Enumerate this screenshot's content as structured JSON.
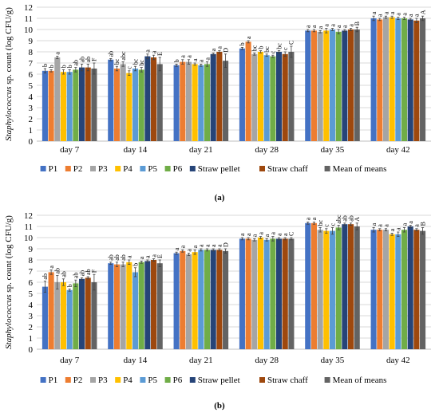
{
  "figure": {
    "panel_a_caption": "(a)",
    "panel_b_caption": "(b)",
    "ylabel_italic": "Staphylococcus",
    "ylabel_rest": " sp. count (log CFU/g)"
  },
  "colors": {
    "P1": "#4472C4",
    "P2": "#ED7D31",
    "P3": "#A5A5A5",
    "P4": "#FFC000",
    "P5": "#5B9BD5",
    "P6": "#70AD47",
    "Straw pellet": "#264478",
    "Straw chaff": "#9E480E",
    "Mean of means": "#636363"
  },
  "chart_data": [
    {
      "type": "bar",
      "panel": "(a)",
      "ylabel": "Staphylococcus sp. count (log CFU/g)",
      "ylim": [
        0,
        12
      ],
      "yticks": [
        0,
        1,
        2,
        3,
        4,
        5,
        6,
        7,
        8,
        9,
        10,
        11,
        12
      ],
      "grid": true,
      "legend_position": "bottom",
      "categories": [
        "day 7",
        "day 14",
        "day 21",
        "day 28",
        "day 35",
        "day 42"
      ],
      "series": [
        {
          "name": "P1",
          "values": [
            6.3,
            7.3,
            6.8,
            8.3,
            9.9,
            11.0
          ],
          "errors": [
            0.2,
            0.1,
            0.1,
            0.1,
            0.1,
            0.2
          ],
          "labels": [
            "b",
            "ab",
            "b",
            "b",
            "a",
            "a"
          ]
        },
        {
          "name": "P2",
          "values": [
            6.3,
            6.5,
            7.1,
            8.9,
            9.9,
            10.9
          ],
          "errors": [
            0.1,
            0.2,
            0.2,
            0.1,
            0.1,
            0.1
          ],
          "labels": [
            "b",
            "bc",
            "a",
            "a",
            "a",
            "a"
          ]
        },
        {
          "name": "P3",
          "values": [
            7.5,
            6.9,
            7.1,
            7.8,
            9.8,
            11.1
          ],
          "errors": [
            0.1,
            0.2,
            0.2,
            0.1,
            0.1,
            0.1
          ],
          "labels": [
            "a",
            "abc",
            "a",
            "bc",
            "a",
            "a"
          ]
        },
        {
          "name": "P4",
          "values": [
            6.2,
            6.1,
            6.9,
            8.0,
            9.9,
            11.1
          ],
          "errors": [
            0.2,
            0.2,
            0.1,
            0.1,
            0.2,
            0.1
          ],
          "labels": [
            "b",
            "c",
            "a",
            "b",
            "a",
            "a"
          ]
        },
        {
          "name": "P5",
          "values": [
            6.2,
            6.5,
            6.8,
            7.7,
            10.0,
            11.0
          ],
          "errors": [
            0.2,
            0.2,
            0.1,
            0.1,
            0.1,
            0.1
          ],
          "labels": [
            "b",
            "bc",
            "a",
            "bc",
            "a",
            "a"
          ]
        },
        {
          "name": "P6",
          "values": [
            6.4,
            6.4,
            6.9,
            7.6,
            9.8,
            11.0
          ],
          "errors": [
            0.2,
            0.2,
            0.2,
            0.1,
            0.2,
            0.1
          ],
          "labels": [
            "ab",
            "bc",
            "a",
            "c",
            "a",
            "a"
          ]
        },
        {
          "name": "Straw pellet",
          "values": [
            6.6,
            7.6,
            7.8,
            8.0,
            9.9,
            10.9
          ],
          "errors": [
            0.3,
            0.2,
            0.1,
            0.1,
            0.1,
            0.1
          ],
          "labels": [
            "ab",
            "a",
            "a",
            "bc",
            "a",
            "a"
          ]
        },
        {
          "name": "Straw chaff",
          "values": [
            6.6,
            7.5,
            8.0,
            7.8,
            10.0,
            10.8
          ],
          "errors": [
            0.3,
            0.2,
            0.1,
            0.2,
            0.1,
            0.2
          ],
          "labels": [
            "ab",
            "a",
            "a",
            "c",
            "a",
            "a"
          ]
        },
        {
          "name": "Mean of means",
          "values": [
            6.5,
            6.9,
            7.2,
            8.0,
            10.0,
            11.0
          ],
          "errors": [
            0.5,
            0.6,
            0.6,
            0.5,
            0.2,
            0.2
          ],
          "labels": [
            "F",
            "E",
            "D",
            "C",
            "B",
            "A"
          ]
        }
      ]
    },
    {
      "type": "bar",
      "panel": "(b)",
      "ylabel": "Staphylococcus sp. count (log CFU/g)",
      "ylim": [
        0,
        12
      ],
      "yticks": [
        0,
        1,
        2,
        3,
        4,
        5,
        6,
        7,
        8,
        9,
        10,
        11,
        12
      ],
      "grid": true,
      "legend_position": "bottom",
      "categories": [
        "day 7",
        "day 14",
        "day 21",
        "day 28",
        "day 35",
        "day 42"
      ],
      "series": [
        {
          "name": "P1",
          "values": [
            5.6,
            7.7,
            8.6,
            9.9,
            11.3,
            10.7
          ],
          "errors": [
            0.5,
            0.1,
            0.1,
            0.1,
            0.1,
            0.2
          ],
          "labels": [
            "ab",
            "ab",
            "a",
            "a",
            "a",
            "a"
          ]
        },
        {
          "name": "P2",
          "values": [
            6.9,
            7.6,
            8.8,
            9.9,
            11.3,
            10.7
          ],
          "errors": [
            0.2,
            0.2,
            0.1,
            0.1,
            0.1,
            0.1
          ],
          "labels": [
            "a",
            "ab",
            "a",
            "a",
            "a",
            "a"
          ]
        },
        {
          "name": "P3",
          "values": [
            6.0,
            7.6,
            8.5,
            9.8,
            10.7,
            10.7
          ],
          "errors": [
            0.6,
            0.2,
            0.1,
            0.1,
            0.2,
            0.1
          ],
          "labels": [
            "ab",
            "ab",
            "a",
            "a",
            "bc",
            "a"
          ]
        },
        {
          "name": "P4",
          "values": [
            6.0,
            7.8,
            8.7,
            10.0,
            10.6,
            10.3
          ],
          "errors": [
            0.3,
            0.2,
            0.2,
            0.1,
            0.2,
            0.1
          ],
          "labels": [
            "ab",
            "a",
            "a",
            "a",
            "c",
            "a"
          ]
        },
        {
          "name": "P5",
          "values": [
            5.3,
            6.9,
            8.9,
            9.8,
            10.6,
            10.3
          ],
          "errors": [
            0.1,
            0.4,
            0.1,
            0.1,
            0.3,
            0.2
          ],
          "labels": [
            "b",
            "b",
            "a",
            "a",
            "c",
            "a"
          ]
        },
        {
          "name": "P6",
          "values": [
            5.9,
            7.8,
            8.9,
            9.9,
            10.9,
            10.7
          ],
          "errors": [
            0.3,
            0.1,
            0.1,
            0.2,
            0.2,
            0.2
          ],
          "labels": [
            "ab",
            "a",
            "a",
            "a",
            "abc",
            "a"
          ]
        },
        {
          "name": "Straw pellet",
          "values": [
            6.3,
            7.9,
            8.9,
            9.9,
            11.2,
            11.0
          ],
          "errors": [
            0.1,
            0.1,
            0.1,
            0.1,
            0.1,
            0.1
          ],
          "labels": [
            "ab",
            "a",
            "a",
            "a",
            "ab",
            "a"
          ]
        },
        {
          "name": "Straw chaff",
          "values": [
            6.4,
            8.0,
            8.9,
            9.9,
            11.2,
            10.7
          ],
          "errors": [
            0.1,
            0.1,
            0.1,
            0.1,
            0.1,
            0.1
          ],
          "labels": [
            "ab",
            "a",
            "a",
            "a",
            "ab",
            "a"
          ]
        },
        {
          "name": "Mean of means",
          "values": [
            6.0,
            7.7,
            8.8,
            9.9,
            11.0,
            10.6
          ],
          "errors": [
            0.7,
            0.3,
            0.2,
            0.1,
            0.3,
            0.3
          ],
          "labels": [
            "F",
            "E",
            "D",
            "C",
            "A",
            "B"
          ]
        }
      ]
    }
  ]
}
